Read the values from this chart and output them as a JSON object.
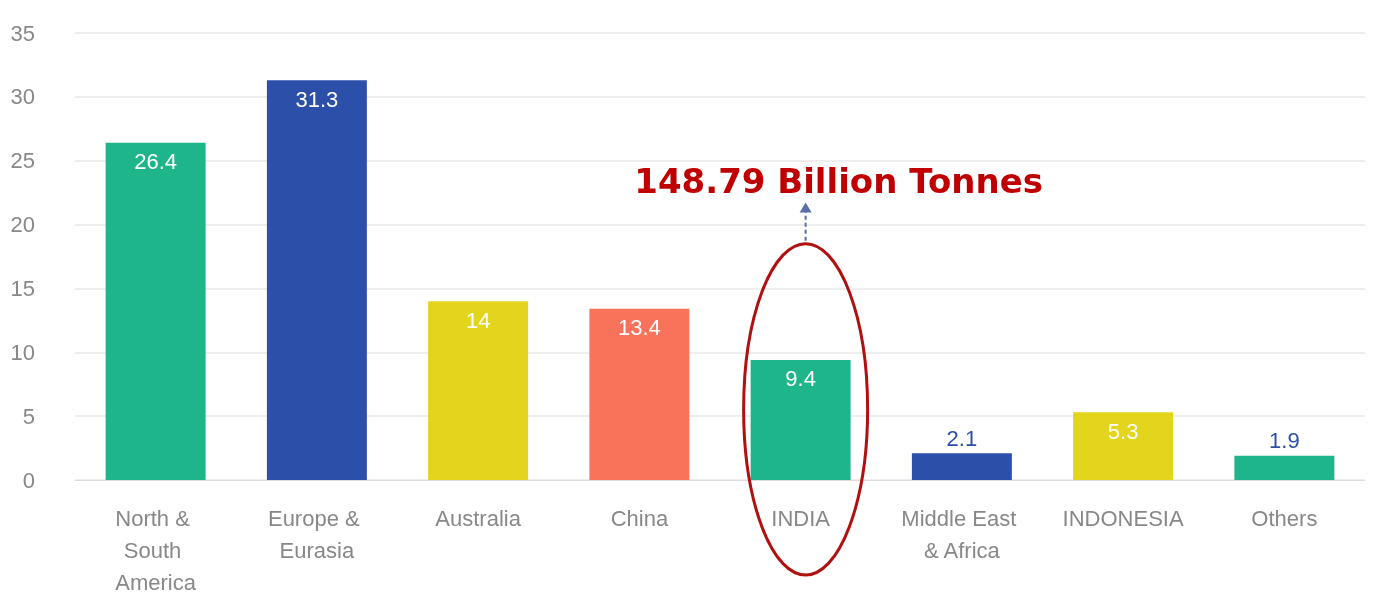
{
  "chart_data": {
    "type": "bar",
    "categories": [
      "North & South America",
      "Europe & Eurasia",
      "Australia",
      "China",
      "INDIA",
      "Middle East & Africa",
      "INDONESIA",
      "Others"
    ],
    "values": [
      26.4,
      31.3,
      14,
      13.4,
      9.4,
      2.1,
      5.3,
      1.9
    ],
    "colors": [
      "#1fb58a",
      "#2c4faa",
      "#e3d51b",
      "#f8735a",
      "#1fb58a",
      "#2c4faa",
      "#e3d51b",
      "#1fb58a"
    ],
    "ylim": [
      0,
      35
    ],
    "yticks": [
      0,
      5,
      10,
      15,
      20,
      25,
      30,
      35
    ],
    "grid": "y",
    "data_labels": true,
    "annotations": [
      "148.79 Billion Tonnes"
    ]
  }
}
